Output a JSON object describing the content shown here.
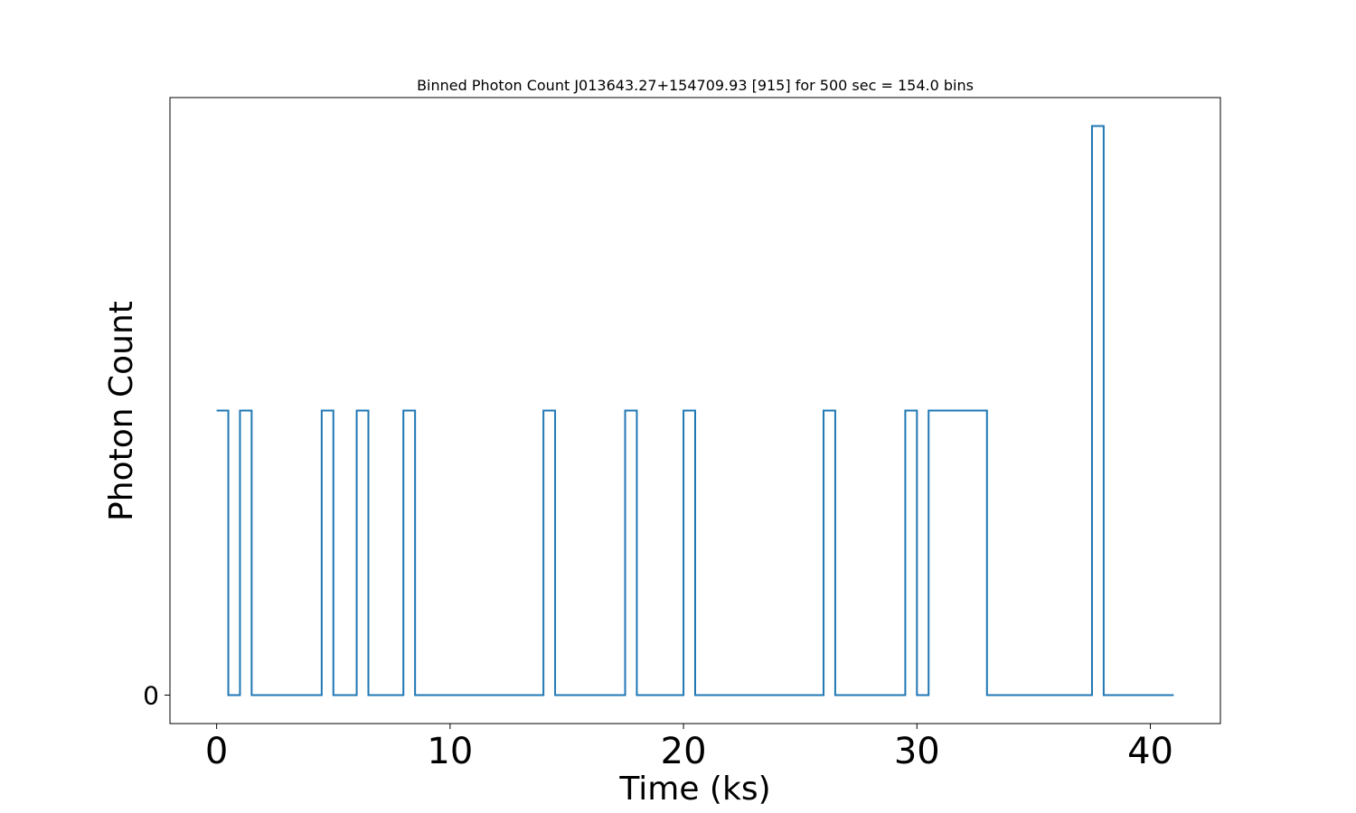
{
  "chart_data": {
    "type": "line",
    "drawstyle": "steps-post",
    "title": "Binned Photon Count J013643.27+154709.93 [915] for 500 sec = 154.0 bins",
    "xlabel": "Time (ks)",
    "ylabel": "Photon Count",
    "xlim": [
      -2,
      43
    ],
    "ylim": [
      -0.1,
      2.1
    ],
    "x_ticks": [
      0,
      10,
      20,
      30,
      40
    ],
    "x_tick_labels": [
      "0",
      "10",
      "20",
      "30",
      "40"
    ],
    "y_ticks": [
      0
    ],
    "y_tick_labels": [
      "0"
    ],
    "grid": false,
    "color": "#1f77b4",
    "series": [
      {
        "x": [
          0,
          0.5,
          1.0,
          1.5,
          4.5,
          5.0,
          6.0,
          6.5,
          8.0,
          8.5,
          14.0,
          14.5,
          17.5,
          18.0,
          20.0,
          20.5,
          26.0,
          26.5,
          29.5,
          30.0,
          30.5,
          33.0,
          37.5,
          38.0,
          41.0
        ],
        "y": [
          1,
          0,
          1,
          0,
          1,
          0,
          1,
          0,
          1,
          0,
          1,
          0,
          1,
          0,
          1,
          0,
          1,
          0,
          1,
          0,
          1,
          0,
          2,
          0,
          0
        ]
      }
    ]
  }
}
